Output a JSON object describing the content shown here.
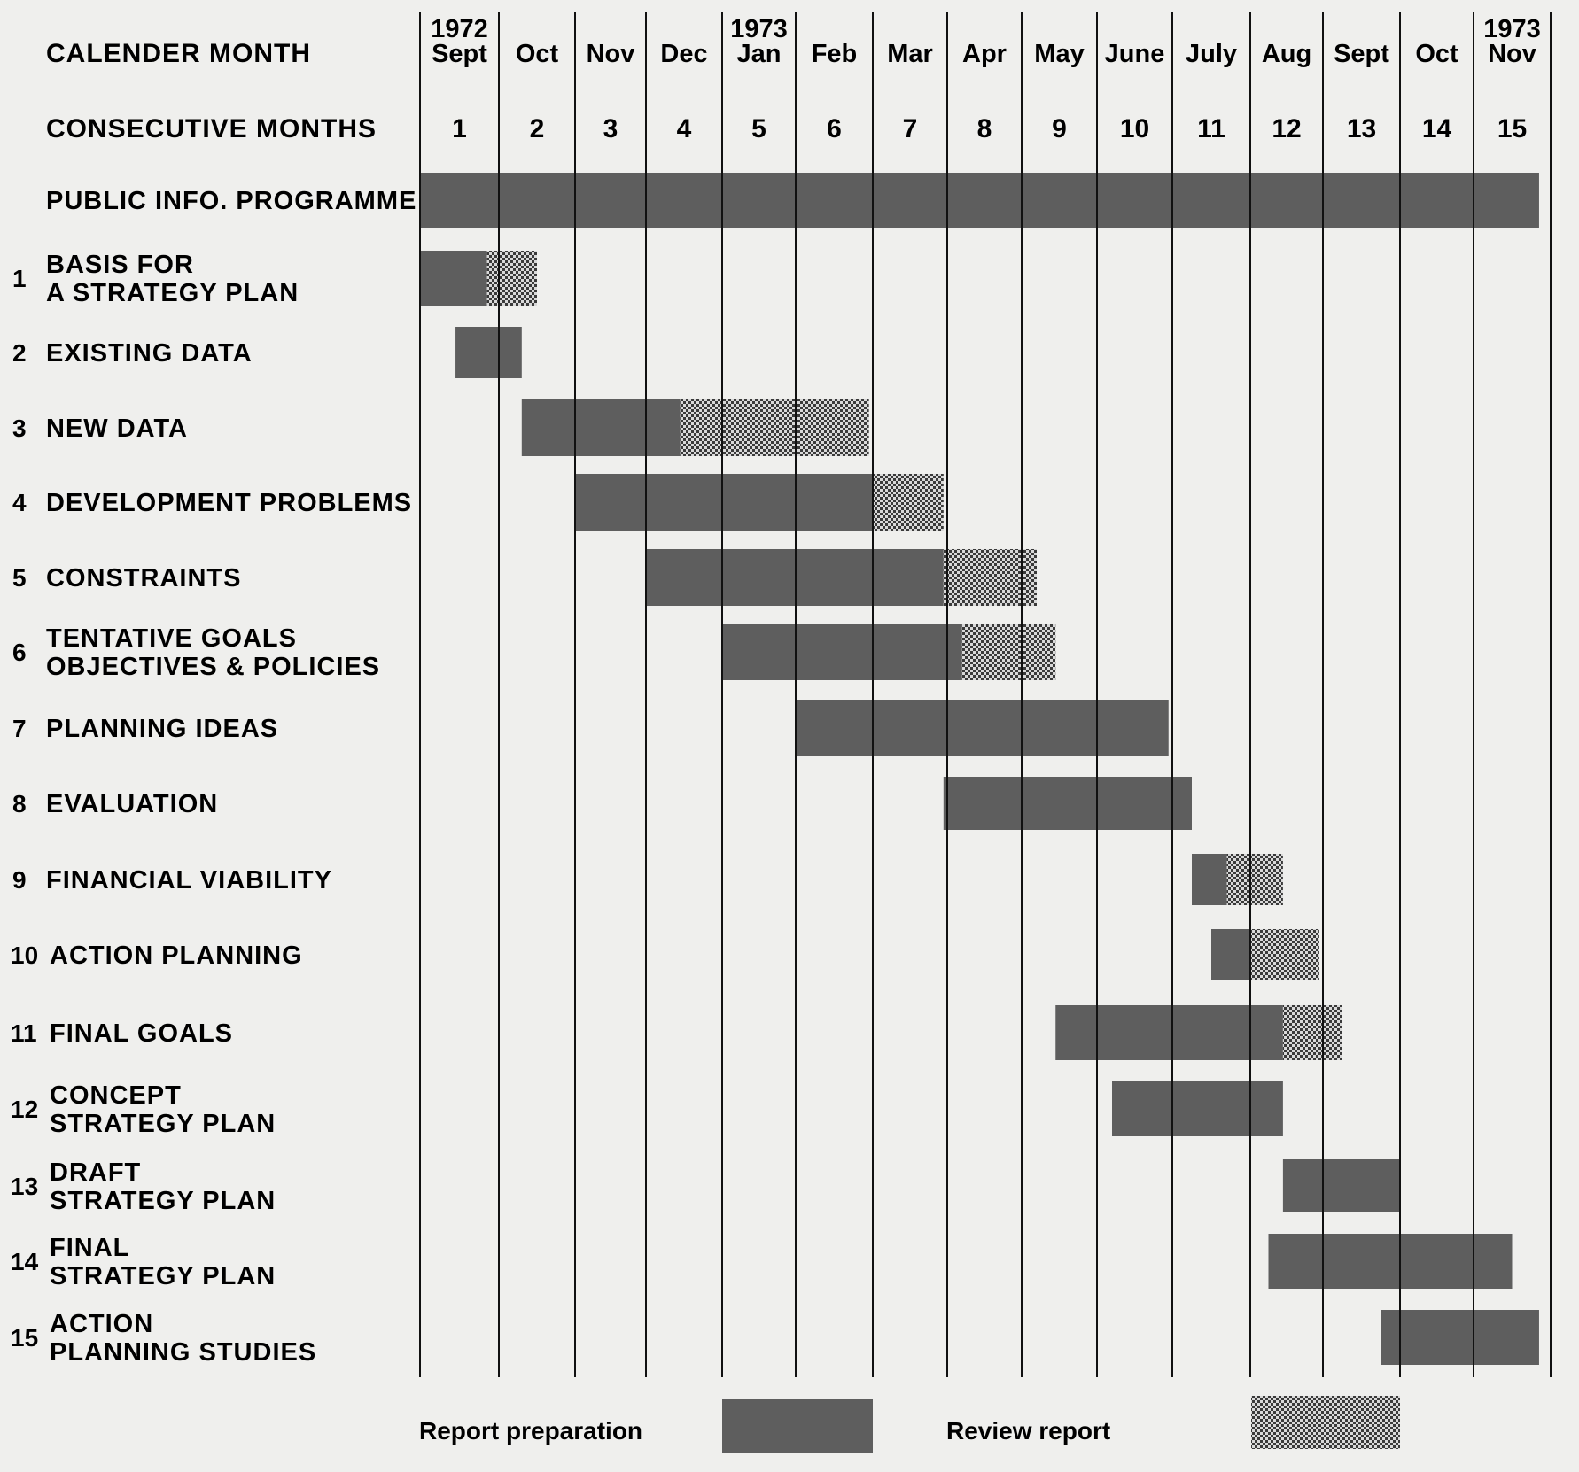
{
  "chart_data": {
    "type": "gantt",
    "header": {
      "calendar_label": "CALENDER MONTH",
      "consecutive_label": "CONSECUTIVE MONTHS"
    },
    "months": [
      {
        "year": "1972",
        "name": "Sept",
        "number": "1"
      },
      {
        "year": "",
        "name": "Oct",
        "number": "2"
      },
      {
        "year": "",
        "name": "Nov",
        "number": "3"
      },
      {
        "year": "",
        "name": "Dec",
        "number": "4"
      },
      {
        "year": "1973",
        "name": "Jan",
        "number": "5"
      },
      {
        "year": "",
        "name": "Feb",
        "number": "6"
      },
      {
        "year": "",
        "name": "Mar",
        "number": "7"
      },
      {
        "year": "",
        "name": "Apr",
        "number": "8"
      },
      {
        "year": "",
        "name": "May",
        "number": "9"
      },
      {
        "year": "",
        "name": "June",
        "number": "10"
      },
      {
        "year": "",
        "name": "July",
        "number": "11"
      },
      {
        "year": "",
        "name": "Aug",
        "number": "12"
      },
      {
        "year": "",
        "name": "Sept",
        "number": "13"
      },
      {
        "year": "",
        "name": "Oct",
        "number": "14"
      },
      {
        "year": "1973",
        "name": "Nov",
        "number": "15"
      }
    ],
    "tasks": [
      {
        "num": "",
        "lines": [
          "PUBLIC INFO. PROGRAMME"
        ],
        "prep": [
          0,
          14.85
        ],
        "review": null
      },
      {
        "num": "1",
        "lines": [
          "BASIS FOR",
          "A STRATEGY PLAN"
        ],
        "prep": [
          0,
          0.85
        ],
        "review": [
          0.85,
          1.5
        ]
      },
      {
        "num": "2",
        "lines": [
          "EXISTING  DATA"
        ],
        "prep": [
          0.45,
          1.3
        ],
        "review": null
      },
      {
        "num": "3",
        "lines": [
          "NEW DATA"
        ],
        "prep": [
          1.3,
          3.45
        ],
        "review": [
          3.45,
          5.95
        ]
      },
      {
        "num": "4",
        "lines": [
          "DEVELOPMENT PROBLEMS"
        ],
        "prep": [
          2.0,
          6.0
        ],
        "review": [
          6.0,
          6.95
        ]
      },
      {
        "num": "5",
        "lines": [
          "CONSTRAINTS"
        ],
        "prep": [
          3.0,
          6.95
        ],
        "review": [
          6.95,
          8.2
        ]
      },
      {
        "num": "6",
        "lines": [
          "TENTATIVE  GOALS",
          "OBJECTIVES & POLICIES"
        ],
        "prep": [
          4.0,
          7.2
        ],
        "review": [
          7.2,
          8.45
        ]
      },
      {
        "num": "7",
        "lines": [
          "PLANNING  IDEAS"
        ],
        "prep": [
          5.0,
          9.95
        ],
        "review": null
      },
      {
        "num": "8",
        "lines": [
          "EVALUATION"
        ],
        "prep": [
          6.95,
          10.25
        ],
        "review": null
      },
      {
        "num": "9",
        "lines": [
          "FINANCIAL  VIABILITY"
        ],
        "prep": [
          10.25,
          10.7
        ],
        "review": [
          10.7,
          11.45
        ]
      },
      {
        "num": "10",
        "lines": [
          "ACTION  PLANNING"
        ],
        "prep": [
          10.5,
          11.0
        ],
        "review": [
          11.0,
          11.95
        ]
      },
      {
        "num": "11",
        "lines": [
          "FINAL  GOALS"
        ],
        "prep": [
          8.45,
          11.45
        ],
        "review": [
          11.45,
          12.25
        ]
      },
      {
        "num": "12",
        "lines": [
          "CONCEPT",
          "STRATEGY  PLAN"
        ],
        "prep": [
          9.2,
          11.45
        ],
        "review": null
      },
      {
        "num": "13",
        "lines": [
          "DRAFT",
          "STRATEGY  PLAN"
        ],
        "prep": [
          11.45,
          13.0
        ],
        "review": null
      },
      {
        "num": "14",
        "lines": [
          "FINAL",
          "STRATEGY  PLAN"
        ],
        "prep": [
          11.25,
          14.5
        ],
        "review": null
      },
      {
        "num": "15",
        "lines": [
          "ACTION",
          "PLANNING  STUDIES"
        ],
        "prep": [
          12.75,
          14.85
        ],
        "review": null
      }
    ],
    "legend": {
      "prep_label": "Report preparation",
      "review_label": "Review  report"
    },
    "colors": {
      "prep": "#5e5e5e",
      "review_fg": "#3a3a3a",
      "review_bg": "#d9d9d9",
      "line": "#111111",
      "background": "#efefed"
    }
  }
}
